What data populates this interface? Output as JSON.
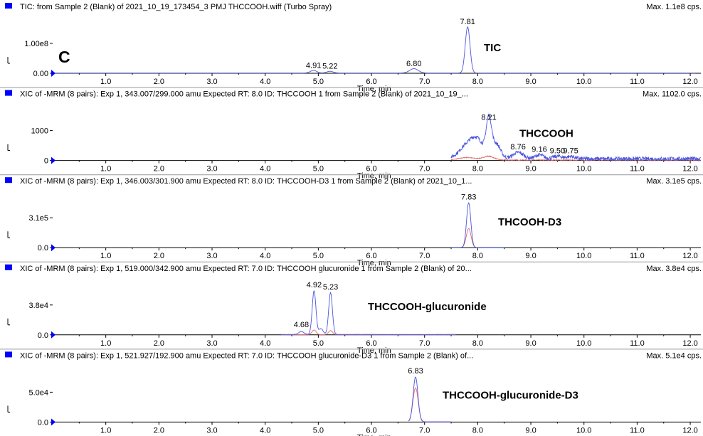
{
  "panel_label": "C",
  "xlabel": "Time, min",
  "xticks": [
    "1.0",
    "2.0",
    "3.0",
    "4.0",
    "5.0",
    "6.0",
    "7.0",
    "8.0",
    "9.0",
    "10.0",
    "11.0",
    "12.0"
  ],
  "colors": {
    "marker": "#0000ff",
    "trace_primary": "#4a55e0",
    "trace_secondary": "#e06a6a",
    "axis": "#000000"
  },
  "chart_data": [
    {
      "type": "line",
      "title": "TIC: from Sample 2 (Blank) of 2021_10_19_173454_3 PMJ THCCOOH.wiff (Turbo Spray)",
      "max_label": "Max. 1.1e8 cps.",
      "compound": "TIC",
      "ytick_labels": [
        "1.00e8",
        "0.00"
      ],
      "ylim": [
        0,
        110000000.0
      ],
      "xlim": [
        0,
        12.2
      ],
      "peak_labels": [
        {
          "x": 4.91,
          "y": 6000000.0,
          "text": "4.91"
        },
        {
          "x": 5.22,
          "y": 4000000.0,
          "text": "5.22"
        },
        {
          "x": 6.8,
          "y": 10000000.0,
          "text": "6.80"
        },
        {
          "x": 7.81,
          "y": 105000000.0,
          "text": "7.81"
        }
      ],
      "series": [
        {
          "peaks": [
            [
              4.91,
              6000000.0,
              0.06
            ],
            [
              5.22,
              4000000.0,
              0.06
            ],
            [
              6.8,
              10000000.0,
              0.08
            ],
            [
              7.81,
              105000000.0,
              0.045
            ]
          ],
          "baseline": 500000.0,
          "noise": 0
        }
      ]
    },
    {
      "type": "line",
      "title": "XIC of -MRM (8 pairs): Exp 1, 343.007/299.000 amu Expected RT: 8.0 ID: THCCOOH 1 from Sample 2 (Blank) of 2021_10_19_...",
      "max_label": "Max. 1102.0 cps.",
      "compound": "THCCOOH",
      "ytick_labels": [
        "1000",
        "0"
      ],
      "ylim": [
        0,
        1150
      ],
      "xlim": [
        0,
        12.2
      ],
      "peak_labels": [
        {
          "x": 8.21,
          "y": 900,
          "text": "8.21"
        },
        {
          "x": 8.76,
          "y": 200,
          "text": "8.76"
        },
        {
          "x": 9.16,
          "y": 140,
          "text": "9.16"
        },
        {
          "x": 9.5,
          "y": 100,
          "text": "9.50"
        },
        {
          "x": 9.75,
          "y": 100,
          "text": "9.75"
        }
      ],
      "series": [
        {
          "x_start": 7.5,
          "x_end": 12.2,
          "peaks": [
            [
              7.8,
              300,
              0.15
            ],
            [
              8.0,
              380,
              0.12
            ],
            [
              8.21,
              880,
              0.05
            ],
            [
              8.35,
              350,
              0.08
            ],
            [
              8.76,
              150,
              0.1
            ],
            [
              9.16,
              90,
              0.08
            ],
            [
              9.5,
              60,
              0.08
            ],
            [
              9.75,
              55,
              0.08
            ]
          ],
          "baseline": 40,
          "noise": 45
        },
        {
          "x_start": 7.5,
          "x_end": 12.2,
          "peaks": [
            [
              7.8,
              60,
              0.15
            ],
            [
              8.2,
              90,
              0.1
            ]
          ],
          "baseline": 10,
          "noise": 10
        }
      ]
    },
    {
      "type": "line",
      "title": "XIC of -MRM (8 pairs): Exp 1, 346.003/301.900 amu Expected RT: 8.0 ID: THCCOOH-D3 1 from Sample 2 (Blank) of 2021_10_1...",
      "max_label": "Max. 3.1e5 cps.",
      "compound": "THCOOH-D3",
      "ytick_labels": [
        "3.1e5",
        "0.0"
      ],
      "ylim": [
        0,
        330000.0
      ],
      "xlim": [
        0,
        12.2
      ],
      "peak_labels": [
        {
          "x": 7.83,
          "y": 310000.0,
          "text": "7.83"
        }
      ],
      "series": [
        {
          "x_start": 7.5,
          "x_end": 8.5,
          "peaks": [
            [
              7.83,
              305000.0,
              0.04
            ]
          ],
          "baseline": 1000,
          "noise": 0
        },
        {
          "x_start": 7.5,
          "x_end": 8.5,
          "peaks": [
            [
              7.83,
              130000.0,
              0.045
            ]
          ],
          "baseline": 800,
          "noise": 0
        }
      ]
    },
    {
      "type": "line",
      "title": "XIC of -MRM (8 pairs): Exp 1, 519.000/342.900 amu Expected RT: 7.0 ID: THCCOOH glucuronide 1 from Sample 2 (Blank) of 20...",
      "max_label": "Max. 3.8e4 cps.",
      "compound": "THCCOOH-glucuronide",
      "ytick_labels": [
        "3.8e4",
        "0.0"
      ],
      "ylim": [
        0,
        41000.0
      ],
      "xlim": [
        0,
        12.2
      ],
      "peak_labels": [
        {
          "x": 4.68,
          "y": 4000.0,
          "text": "4.68"
        },
        {
          "x": 4.92,
          "y": 38000.0,
          "text": "4.92"
        },
        {
          "x": 5.23,
          "y": 36000.0,
          "text": "5.23"
        }
      ],
      "series": [
        {
          "x_start": 4.3,
          "x_end": 7.6,
          "peaks": [
            [
              4.68,
              2500.0,
              0.05
            ],
            [
              4.92,
              37000.0,
              0.035
            ],
            [
              5.23,
              35500.0,
              0.035
            ],
            [
              5.05,
              5000.0,
              0.04
            ]
          ],
          "baseline": 300,
          "noise": 150
        },
        {
          "x_start": 4.3,
          "x_end": 7.6,
          "peaks": [
            [
              4.92,
              4000.0,
              0.04
            ],
            [
              5.23,
              3500.0,
              0.04
            ]
          ],
          "baseline": 100,
          "noise": 50
        }
      ]
    },
    {
      "type": "line",
      "title": "XIC of -MRM (8 pairs): Exp 1, 521.927/192.900 amu Expected RT: 7.0 ID: THCCOOH glucuronide-D3 1 from Sample 2 (Blank) of...",
      "max_label": "Max. 5.1e4 cps.",
      "compound": "THCCOOH-glucuronide-D3",
      "ytick_labels": [
        "5.0e4",
        "0.0"
      ],
      "ylim": [
        0,
        54000.0
      ],
      "xlim": [
        0,
        12.2
      ],
      "peak_labels": [
        {
          "x": 6.83,
          "y": 51000.0,
          "text": "6.83"
        }
      ],
      "series": [
        {
          "x_start": 6.7,
          "x_end": 7.5,
          "peaks": [
            [
              6.83,
              50000.0,
              0.045
            ]
          ],
          "baseline": 300,
          "noise": 0
        },
        {
          "x_start": 6.7,
          "x_end": 7.5,
          "peaks": [
            [
              6.83,
              38000.0,
              0.05
            ]
          ],
          "baseline": 200,
          "noise": 0
        }
      ]
    }
  ]
}
